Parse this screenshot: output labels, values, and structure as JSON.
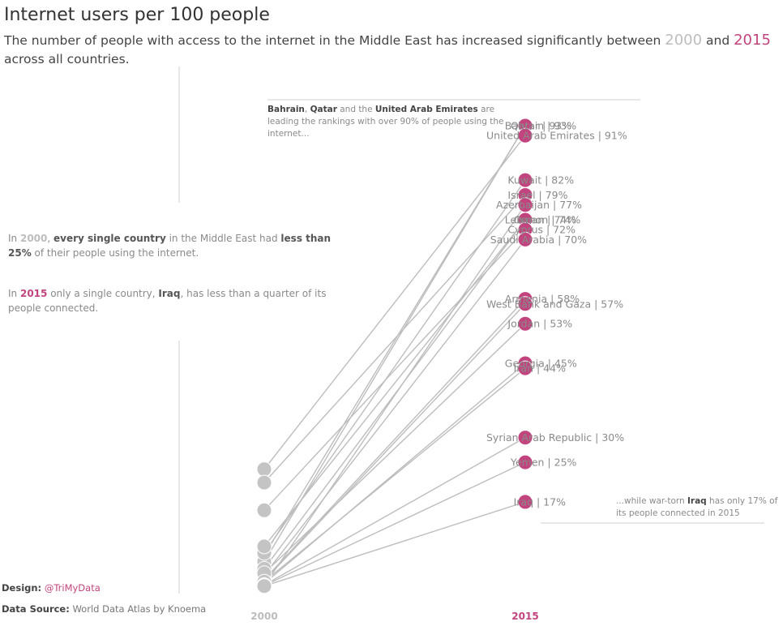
{
  "header": {
    "title": "Internet users per 100 people",
    "subtitle_pre": "The number of people with access to the internet in the Middle East has increased significantly between ",
    "year_a": "2000",
    "subtitle_mid": " and ",
    "year_b": "2015",
    "subtitle_post": " across all countries."
  },
  "notes": {
    "n1_a": "In ",
    "n1_year": "2000",
    "n1_b": ", ",
    "n1_bold1": "every single country",
    "n1_c": " in the Middle East had ",
    "n1_bold2": "less than 25%",
    "n1_d": " of their people using the internet.",
    "n2_a": "In ",
    "n2_year": "2015",
    "n2_b": " only a single country, ",
    "n2_bold": "Iraq",
    "n2_c": ", has less than a quarter of its people connected."
  },
  "annotations": {
    "top_c1": "Bahrain",
    "top_sep1": ", ",
    "top_c2": "Qatar",
    "top_sep2": " and the ",
    "top_c3": "United Arab Emirates",
    "top_rest": " are leading the rankings with over 90% of people using the internet...",
    "bot_pre": "...while war-torn ",
    "bot_bold": "Iraq",
    "bot_rest": " has only 17% of its people connected in 2015"
  },
  "footer": {
    "design_label": "Design:",
    "design_value": "@TriMyData",
    "source_label": "Data Source:",
    "source_value": "World Data Atlas by Knoema"
  },
  "colors": {
    "pink": "#c2447e",
    "grey_dot": "#c4c4c4",
    "line": "#bdbdbd"
  },
  "chart_data": {
    "type": "slope",
    "title": "Internet users per 100 people",
    "categories": [
      "2000",
      "2015"
    ],
    "ylabel": "Internet users per 100 people",
    "ylim": [
      0,
      100
    ],
    "separator": "  |  ",
    "series": [
      {
        "name": "Bahrain",
        "v2000": 6.2,
        "v2015": 93,
        "label": "93%"
      },
      {
        "name": "Qatar",
        "v2000": 4.9,
        "v2015": 93,
        "label": "93%"
      },
      {
        "name": "United Arab Emirates",
        "v2000": 23.6,
        "v2015": 91,
        "label": "91%"
      },
      {
        "name": "Kuwait",
        "v2000": 6.7,
        "v2015": 82,
        "label": "82%"
      },
      {
        "name": "Israel",
        "v2000": 20.9,
        "v2015": 79,
        "label": "79%"
      },
      {
        "name": "Azerbaijan",
        "v2000": 0.1,
        "v2015": 77,
        "label": "77%"
      },
      {
        "name": "Oman",
        "v2000": 3.5,
        "v2015": 74,
        "label": "74%"
      },
      {
        "name": "Lebanon",
        "v2000": 8.0,
        "v2015": 74,
        "label": "74%"
      },
      {
        "name": "Cyprus",
        "v2000": 15.3,
        "v2015": 72,
        "label": "72%"
      },
      {
        "name": "Saudi Arabia",
        "v2000": 2.2,
        "v2015": 70,
        "label": "70%"
      },
      {
        "name": "Armenia",
        "v2000": 1.3,
        "v2015": 58,
        "label": "58%"
      },
      {
        "name": "West Bank and Gaza",
        "v2000": 1.1,
        "v2015": 57,
        "label": "57%"
      },
      {
        "name": "Jordan",
        "v2000": 2.6,
        "v2015": 53,
        "label": "53%"
      },
      {
        "name": "Georgia",
        "v2000": 0.5,
        "v2015": 45,
        "label": "45%"
      },
      {
        "name": "Iran",
        "v2000": 0.9,
        "v2015": 44,
        "label": "44%"
      },
      {
        "name": "Syrian Arab Republic",
        "v2000": 0.2,
        "v2015": 30,
        "label": "30%"
      },
      {
        "name": "Yemen",
        "v2000": 0.1,
        "v2015": 25,
        "label": "25%"
      },
      {
        "name": "Iraq",
        "v2000": 0.0,
        "v2015": 17,
        "label": "17%"
      }
    ]
  }
}
